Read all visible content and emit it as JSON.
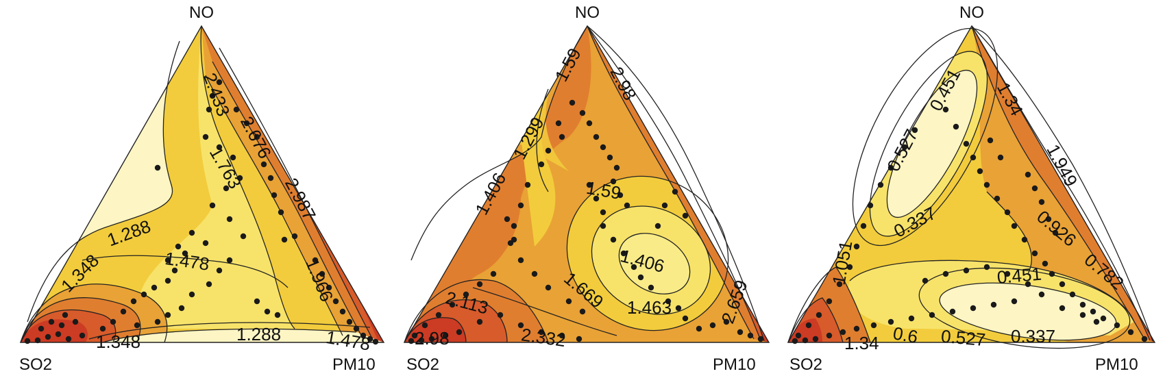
{
  "chart_data": [
    {
      "type": "ternary-contour",
      "vertices": {
        "top": "NO",
        "left": "SO2",
        "right": "PM10"
      },
      "contour_labels": [
        "2.433",
        "2.676",
        "1.763",
        "2.987",
        "1.288",
        "1.348",
        "1.478",
        "1.966",
        "1.288",
        "1.348",
        "1.478"
      ],
      "palette": [
        "#fdf5c4",
        "#f7e36a",
        "#f2cc3c",
        "#e9a235",
        "#e07e2f",
        "#d85b2b",
        "#cc3b23"
      ]
    },
    {
      "type": "ternary-contour",
      "vertices": {
        "top": "NO",
        "left": "SO2",
        "right": "PM10"
      },
      "contour_labels": [
        "1.59",
        "2.98",
        "1.299",
        "1.406",
        "1.59",
        "1.406",
        "1.669",
        "1.463",
        "2.113",
        "2.332",
        "2.98",
        "2.659"
      ],
      "palette": [
        "#fdf5c4",
        "#f7e36a",
        "#f2cc3c",
        "#e9a235",
        "#e07e2f",
        "#d85b2b",
        "#cc3b23"
      ]
    },
    {
      "type": "ternary-contour",
      "vertices": {
        "top": "NO",
        "left": "SO2",
        "right": "PM10"
      },
      "contour_labels": [
        "0.451",
        "1.34",
        "0.527",
        "1.949",
        "0.337",
        "0.926",
        "0.451",
        "0.782",
        "1.051",
        "0.6",
        "0.527",
        "0.337",
        "1.34"
      ],
      "palette": [
        "#fdf5c4",
        "#f7e36a",
        "#f2cc3c",
        "#e9a235",
        "#e07e2f",
        "#d85b2b",
        "#cc3b23"
      ]
    }
  ]
}
